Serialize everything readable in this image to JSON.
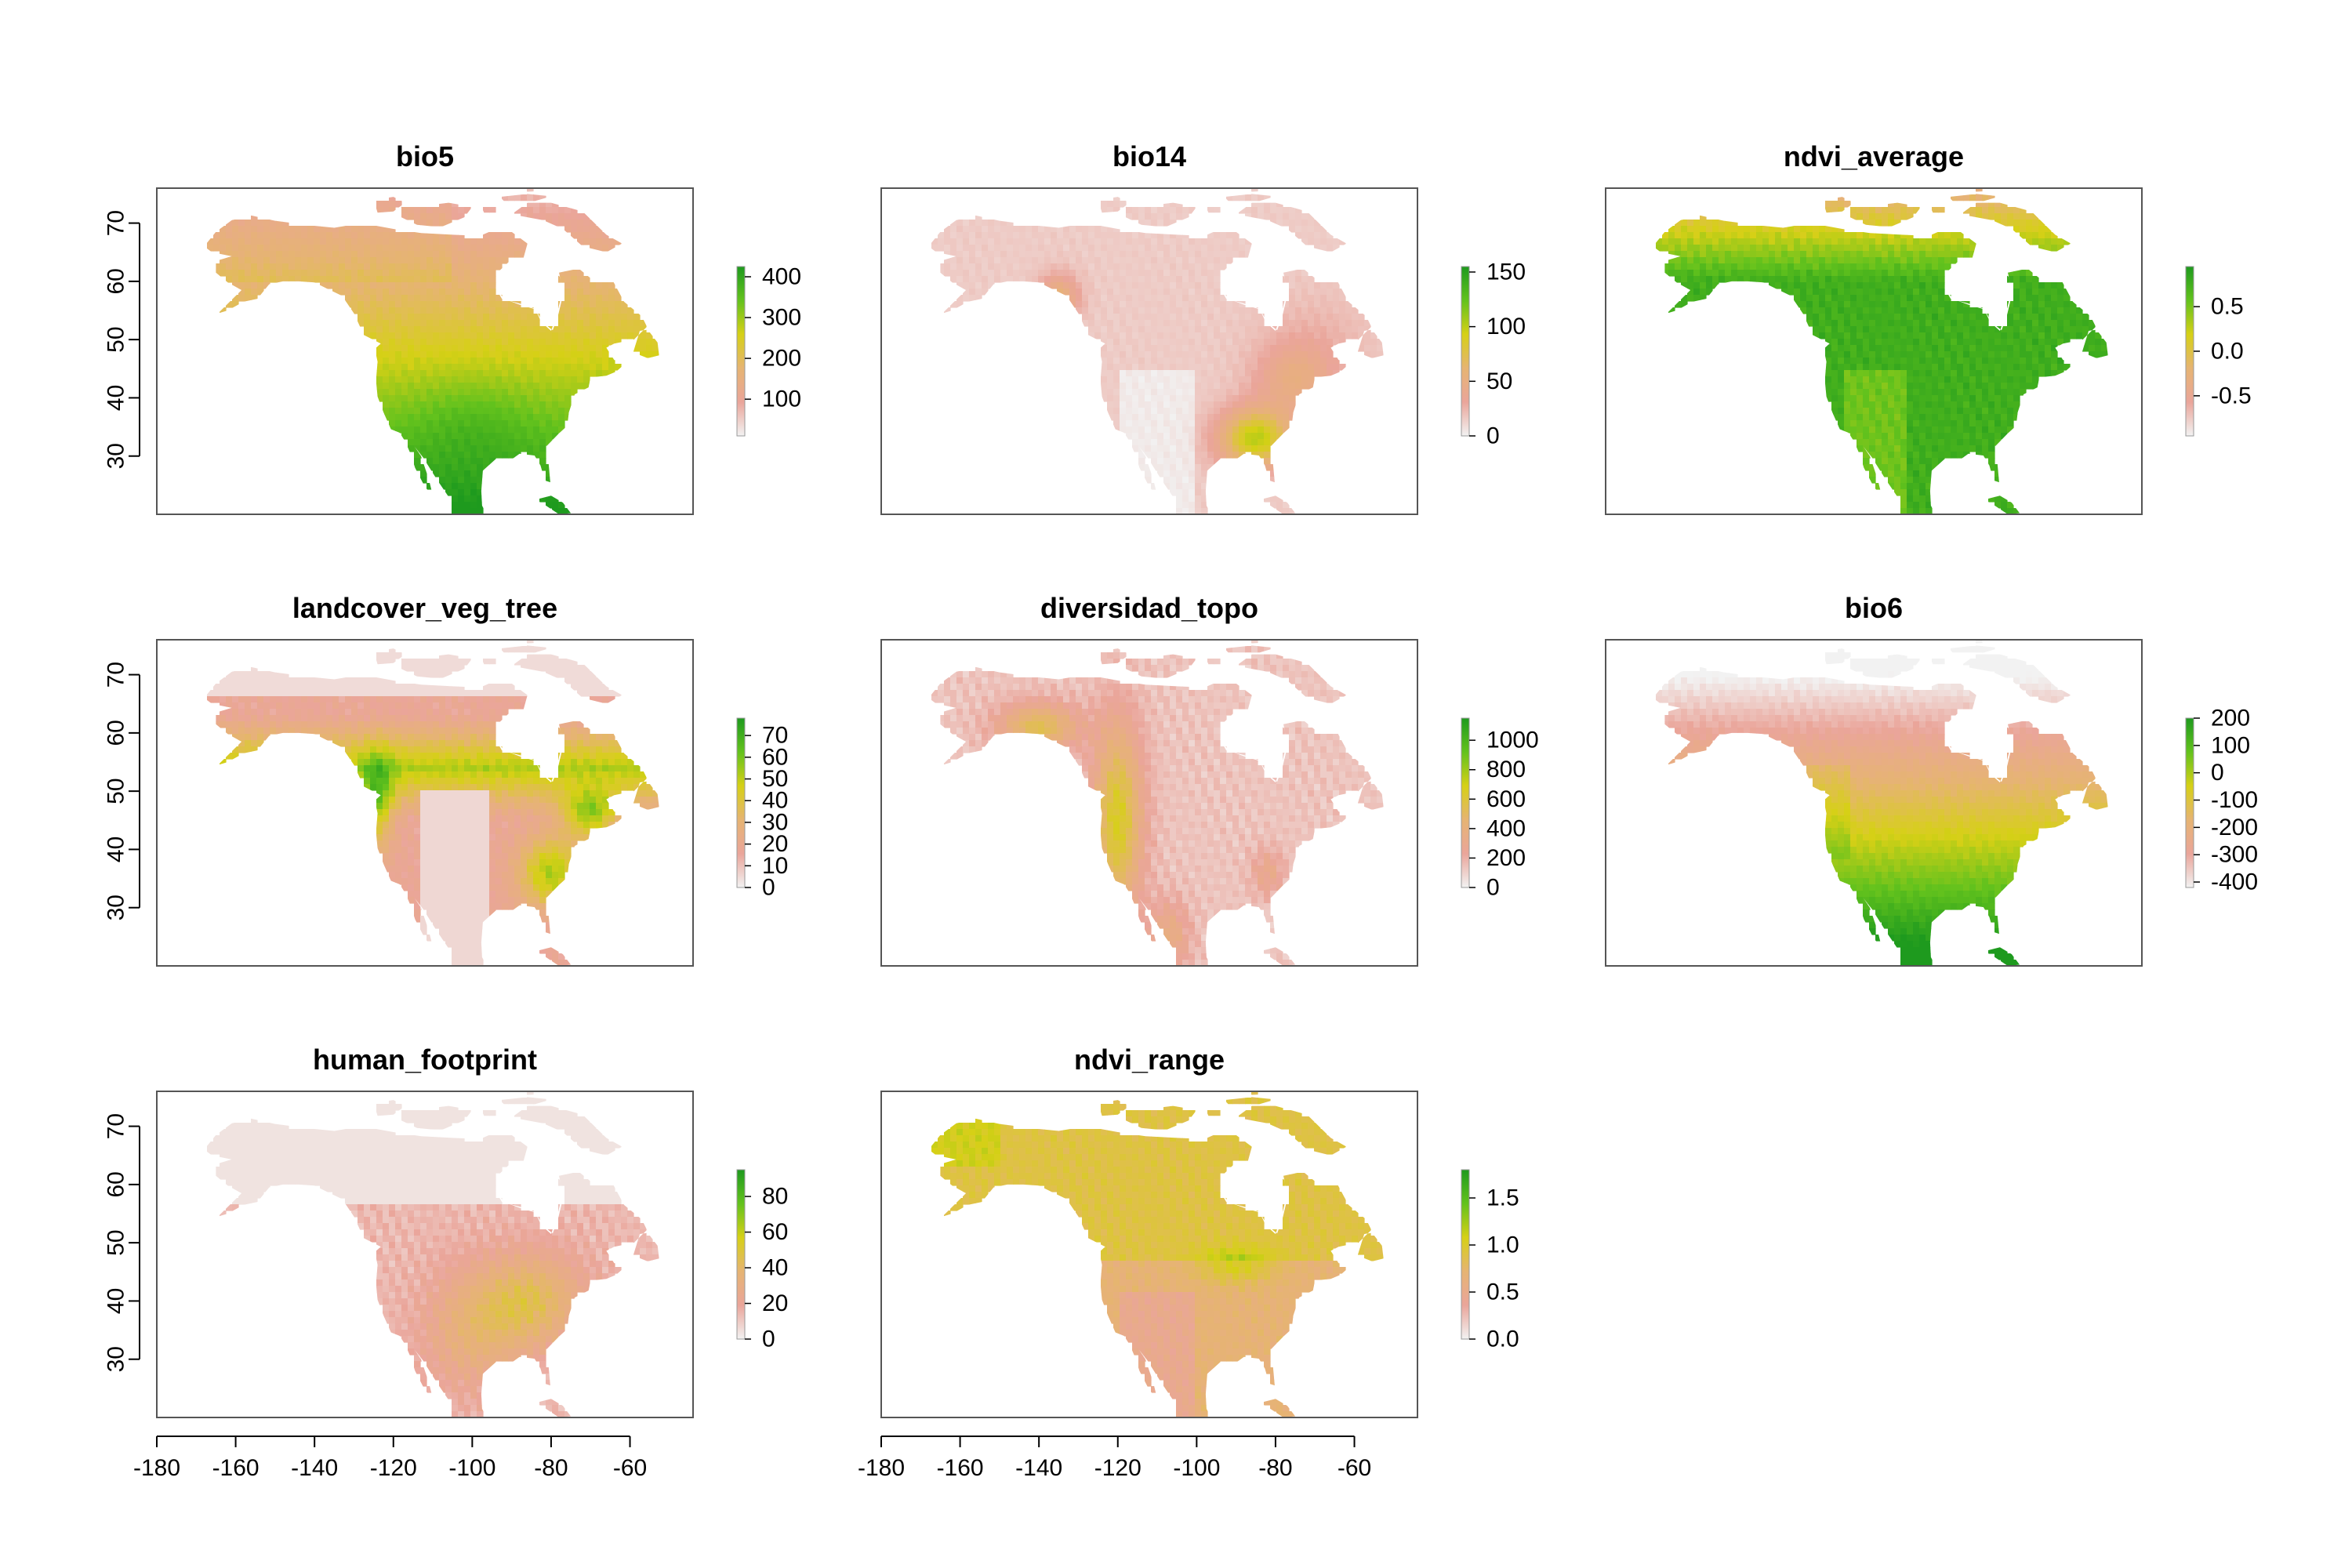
{
  "figure": {
    "colormap": [
      "#f2f2f2",
      "#eaa59a",
      "#e6b472",
      "#d6d016",
      "#63c21d",
      "#1e9a1e"
    ],
    "x_axis": {
      "ticks": [
        -180,
        -160,
        -140,
        -120,
        -100,
        -80,
        -60
      ],
      "range": [
        -180,
        -44
      ]
    },
    "y_axis": {
      "ticks": [
        30,
        40,
        50,
        60,
        70
      ],
      "range": [
        20,
        76
      ]
    }
  },
  "chart_data": [
    {
      "type": "heatmap",
      "title": "bio5",
      "legend_ticks": [
        "100",
        "200",
        "300",
        "400"
      ],
      "legend_values": [
        100,
        200,
        300,
        400
      ],
      "legend_range": [
        10,
        425
      ],
      "pattern": "temperature_max"
    },
    {
      "type": "heatmap",
      "title": "bio14",
      "legend_ticks": [
        "0",
        "50",
        "100",
        "150"
      ],
      "legend_values": [
        0,
        50,
        100,
        150
      ],
      "legend_range": [
        0,
        155
      ],
      "pattern": "precip_dry"
    },
    {
      "type": "heatmap",
      "title": "ndvi_average",
      "legend_ticks": [
        "-0.5",
        "0.0",
        "0.5"
      ],
      "legend_values": [
        -0.5,
        0.0,
        0.5
      ],
      "legend_range": [
        -0.95,
        0.95
      ],
      "pattern": "ndvi"
    },
    {
      "type": "heatmap",
      "title": "landcover_veg_tree",
      "legend_ticks": [
        "0",
        "10",
        "20",
        "30",
        "40",
        "50",
        "60",
        "70"
      ],
      "legend_values": [
        0,
        10,
        20,
        30,
        40,
        50,
        60,
        70
      ],
      "legend_range": [
        0,
        78
      ],
      "pattern": "trees"
    },
    {
      "type": "heatmap",
      "title": "diversidad_topo",
      "legend_ticks": [
        "0",
        "200",
        "400",
        "600",
        "800",
        "1000"
      ],
      "legend_values": [
        0,
        200,
        400,
        600,
        800,
        1000
      ],
      "legend_range": [
        0,
        1150
      ],
      "pattern": "topo"
    },
    {
      "type": "heatmap",
      "title": "bio6",
      "legend_ticks": [
        "-400",
        "-300",
        "-200",
        "-100",
        "0",
        "100",
        "200"
      ],
      "legend_values": [
        -400,
        -300,
        -200,
        -100,
        0,
        100,
        200
      ],
      "legend_range": [
        -420,
        200
      ],
      "pattern": "temperature_min"
    },
    {
      "type": "heatmap",
      "title": "human_footprint",
      "legend_ticks": [
        "0",
        "20",
        "40",
        "60",
        "80"
      ],
      "legend_values": [
        0,
        20,
        40,
        60,
        80
      ],
      "legend_range": [
        0,
        95
      ],
      "pattern": "human"
    },
    {
      "type": "heatmap",
      "title": "ndvi_range",
      "legend_ticks": [
        "0.0",
        "0.5",
        "1.0",
        "1.5"
      ],
      "legend_values": [
        0.0,
        0.5,
        1.0,
        1.5
      ],
      "legend_range": [
        0,
        1.8
      ],
      "pattern": "ndvi_range"
    }
  ]
}
